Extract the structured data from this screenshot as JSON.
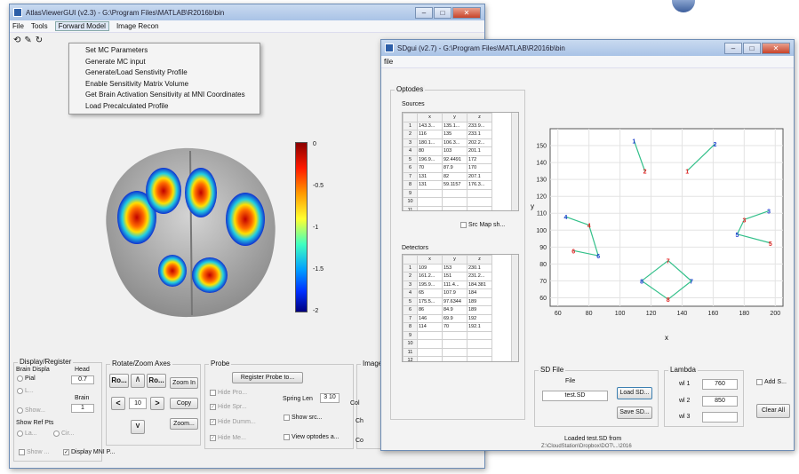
{
  "atlas": {
    "title": "AtlasViewerGUI  (v2.3) - G:\\Program Files\\MATLAB\\R2016b\\bin",
    "menu": [
      "File",
      "Tools",
      "Forward Model",
      "Image Recon"
    ],
    "dropdown": [
      "Set MC Parameters",
      "Generate MC input",
      "Generate/Load Senstivity Profile",
      "Enable Sensitivity Matrix Volume",
      "Get Brain Activation Sensitivity at MNI Coordinates",
      "Load Precalculated Profile"
    ],
    "colorbar": {
      "ticks": [
        "0",
        "-0.5",
        "-1",
        "-1.5",
        "-2"
      ],
      "min": -2,
      "max": 0
    },
    "display_register": {
      "title": "Display/Register",
      "brain_display": "Brain Displa",
      "pial": "Pial",
      "l": "L...",
      "head": "Head",
      "head_value": "0.7",
      "brain": "Brain",
      "brain_value": "1",
      "show": "Show...",
      "show_ref_pts": "Show Ref Pts",
      "la": "La...",
      "cir": "Cir...",
      "show2": "Show ...",
      "display_mni": "Display MNI P..."
    },
    "rotate": {
      "title": "Rotate/Zoom Axes",
      "ro1": "Ro...",
      "up": "/\\",
      "ro2": "Ro...",
      "zoom_in": "Zoom In",
      "left": "<",
      "step": "10",
      "right": ">",
      "copy": "Copy",
      "zoom": "Zoom...",
      "down": "V"
    },
    "probe": {
      "title": "Probe",
      "register": "Register Probe to...",
      "hide_pro": "Hide Pro...",
      "hide_spr": "Hide Spr...",
      "hide_dumm": "Hide Dumm...",
      "hide_me": "Hide Me...",
      "spring_len": "Spring Len",
      "spring_value": "3  10",
      "show_src": "Show src...",
      "view_optodes": "View optodes a..."
    },
    "image": {
      "title": "Image",
      "col": "Col",
      "ch": "Ch",
      "co": "Co"
    }
  },
  "sdgui": {
    "title": "SDgui  (v2.7) - G:\\Program Files\\MATLAB\\R2016b\\bin",
    "menu": [
      "file"
    ],
    "optodes_title": "Optodes",
    "sources_title": "Sources",
    "detectors_title": "Detectors",
    "columns": [
      "x",
      "y",
      "z"
    ],
    "sources": [
      [
        "1",
        "143.3...",
        "135.1...",
        "233.9..."
      ],
      [
        "2",
        "116",
        "135",
        "233.1"
      ],
      [
        "3",
        "180.1...",
        "106.3...",
        "202.2..."
      ],
      [
        "4",
        "80",
        "103",
        "201.1"
      ],
      [
        "5",
        "196.9...",
        "92.4491",
        "172"
      ],
      [
        "6",
        "70",
        "87.9",
        "170"
      ],
      [
        "7",
        "131",
        "82",
        "207.1"
      ],
      [
        "8",
        "131",
        "59.1157",
        "176.3..."
      ],
      [
        "9",
        "",
        "",
        ""
      ],
      [
        "10",
        "",
        "",
        ""
      ],
      [
        "11",
        "",
        "",
        ""
      ]
    ],
    "detectors": [
      [
        "1",
        "109",
        "153",
        "230.1"
      ],
      [
        "2",
        "161.2...",
        "151",
        "231.2..."
      ],
      [
        "3",
        "195.9...",
        "111.4...",
        "184.381"
      ],
      [
        "4",
        "65",
        "107.9",
        "184"
      ],
      [
        "5",
        "175.5...",
        "97.6344",
        "189"
      ],
      [
        "6",
        "86",
        "84.9",
        "189"
      ],
      [
        "7",
        "146",
        "69.9",
        "192"
      ],
      [
        "8",
        "114",
        "70",
        "192.1"
      ],
      [
        "9",
        "",
        "",
        ""
      ],
      [
        "10",
        "",
        "",
        ""
      ],
      [
        "11",
        "",
        "",
        ""
      ],
      [
        "12",
        "",
        "",
        ""
      ]
    ],
    "src_map": "Src Map sh...",
    "sd_file": {
      "title": "SD File",
      "file_label": "File",
      "file_value": "test.SD",
      "load": "Load SD...",
      "save": "Save SD..."
    },
    "lambda": {
      "title": "Lambda",
      "wl1_label": "wl 1",
      "wl1": "760",
      "wl2_label": "wl 2",
      "wl2": "850",
      "wl3_label": "wl 3",
      "wl3": ""
    },
    "add_s": "Add S...",
    "clear_all": "Clear All",
    "status1": "Loaded test.SD from",
    "status2": "Z:\\CloudStation\\Dropbox\\DOT\\...\\2016"
  },
  "chart_data": {
    "type": "scatter",
    "xlabel": "x",
    "ylabel": "y",
    "xlim": [
      55,
      205
    ],
    "ylim": [
      55,
      160
    ],
    "xticks": [
      60,
      80,
      100,
      120,
      140,
      160,
      180,
      200
    ],
    "yticks": [
      60,
      70,
      80,
      90,
      100,
      110,
      120,
      130,
      140,
      150
    ],
    "grid": true,
    "sources": [
      {
        "label": "1",
        "x": 143.3,
        "y": 135.1
      },
      {
        "label": "2",
        "x": 116,
        "y": 135
      },
      {
        "label": "3",
        "x": 180.1,
        "y": 106.3
      },
      {
        "label": "4",
        "x": 80,
        "y": 103
      },
      {
        "label": "5",
        "x": 196.9,
        "y": 92.4
      },
      {
        "label": "6",
        "x": 70,
        "y": 87.9
      },
      {
        "label": "7",
        "x": 131,
        "y": 82
      },
      {
        "label": "8",
        "x": 131,
        "y": 59.1
      }
    ],
    "detectors": [
      {
        "label": "1",
        "x": 109,
        "y": 153
      },
      {
        "label": "2",
        "x": 161.2,
        "y": 151
      },
      {
        "label": "3",
        "x": 195.9,
        "y": 111.4
      },
      {
        "label": "4",
        "x": 65,
        "y": 107.9
      },
      {
        "label": "5",
        "x": 175.5,
        "y": 97.6
      },
      {
        "label": "6",
        "x": 86,
        "y": 84.9
      },
      {
        "label": "7",
        "x": 146,
        "y": 69.9
      },
      {
        "label": "8",
        "x": 114,
        "y": 70
      }
    ],
    "links": [
      [
        1,
        2
      ],
      [
        2,
        1
      ],
      [
        3,
        3
      ],
      [
        3,
        5
      ],
      [
        5,
        5
      ],
      [
        4,
        4
      ],
      [
        4,
        6
      ],
      [
        6,
        6
      ],
      [
        7,
        7
      ],
      [
        7,
        8
      ],
      [
        8,
        7
      ],
      [
        8,
        8
      ]
    ],
    "colors": {
      "source": "#e02020",
      "detector": "#2040d0",
      "link": "#33c08a"
    }
  }
}
